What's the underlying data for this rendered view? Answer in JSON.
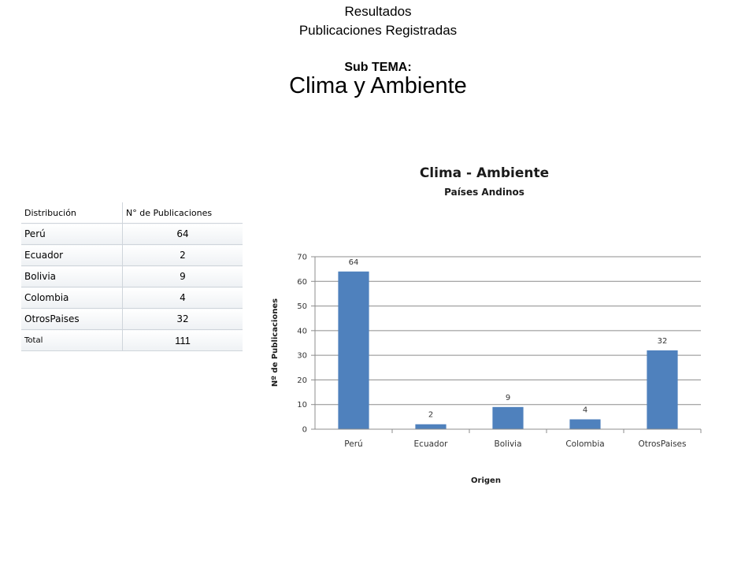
{
  "header": {
    "line1": "Resultados",
    "line2": "Publicaciones Registradas",
    "subtema_label": "Sub TEMA:",
    "subtema": "Clima y Ambiente"
  },
  "table": {
    "headers": [
      "Distribución",
      "N° de Publicaciones"
    ],
    "rows": [
      [
        "Perú",
        "64"
      ],
      [
        "Ecuador",
        "2"
      ],
      [
        "Bolivia",
        "9"
      ],
      [
        "Colombia",
        "4"
      ],
      [
        "OtrosPaises",
        "32"
      ]
    ],
    "total_label": "Total",
    "total_value": "111"
  },
  "chart_data": {
    "type": "bar",
    "title": "Clima - Ambiente",
    "subtitle": "Países Andinos",
    "xlabel": "Origen",
    "ylabel": "Nº de Publicaciones",
    "categories": [
      "Perú",
      "Ecuador",
      "Bolivia",
      "Colombia",
      "OtrosPaises"
    ],
    "values": [
      64,
      2,
      9,
      4,
      32
    ],
    "ylim": [
      0,
      70
    ],
    "yticks": [
      0,
      10,
      20,
      30,
      40,
      50,
      60,
      70
    ],
    "grid": true,
    "legend": "none",
    "bar_color": "#4f81bd"
  }
}
